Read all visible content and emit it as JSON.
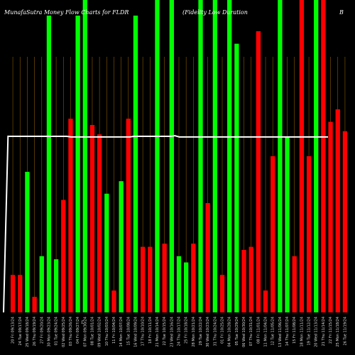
{
  "header": {
    "left": "MunafaSutra Money Flow Charts for FLDR",
    "middle": "(Fidelity Low Duration",
    "right": "B"
  },
  "colors": {
    "background": "#000000",
    "up": "#00ff00",
    "down": "#ff0000",
    "line": "#ffffff",
    "gridline": "#8b5a00"
  },
  "chart_data": {
    "type": "bar",
    "title": "MunafaSutra Money Flow Charts for FLDR (Fidelity Low Duration B",
    "xlabel": "",
    "ylabel": "",
    "ylim": [
      0,
      100
    ],
    "grid": true,
    "marker": "£",
    "categories": [
      "20 Fri 09/13/24",
      "24 Tue 09/17/24",
      "25 Wed 09/18/24",
      "26 Thu 09/19/24",
      "27 Fri 09/20/24",
      "30 Mon 09/23/24",
      "01 Tue 09/24/24",
      "02 Wed 09/25/24",
      "03 Thu 09/26/24",
      "04 Fri 09/27/24",
      "07 Mon 09/30/24",
      "08 Tue 10/01/24",
      "09 Wed 10/02/24",
      "10 Thu 10/03/24",
      "11 Fri 10/04/24",
      "14 Mon 10/07/24",
      "15 Tue 10/08/24",
      "16 Wed 10/09/24",
      "17 Thu 10/10/24",
      "18 Fri 10/11/24",
      "21 Mon 10/14/24",
      "22 Tue 10/15/24",
      "23 Wed 10/16/24",
      "24 Thu 10/17/24",
      "25 Fri 10/18/24",
      "28 Mon 10/21/24",
      "29 Tue 10/22/24",
      "30 Wed 10/23/24",
      "31 Thu 10/24/24",
      "01 Fri 10/25/24",
      "04 Mon 10/28/24",
      "05 Tue 10/29/24",
      "06 Wed 10/30/24",
      "07 Thu 10/31/24",
      "08 Fri 11/01/24",
      "11 Mon 11/04/24",
      "12 Tue 11/05/24",
      "13 Wed 11/06/24",
      "14 Thu 11/07/24",
      "15 Fri 11/08/24",
      "18 Mon 11/11/24",
      "19 Tue 11/12/24",
      "20 Wed 11/13/24",
      "21 Thu 11/14/24",
      "22 Fri 11/15/24",
      "25 Mon 11/18/24",
      "26 Tue 11/19/24"
    ],
    "series": [
      {
        "values": [
          12,
          12,
          45,
          5,
          18,
          95,
          17,
          36,
          62,
          95,
          100,
          60,
          57,
          38,
          7,
          42,
          62,
          95,
          21,
          21,
          100,
          22,
          100,
          18,
          16,
          22,
          100,
          35,
          100,
          12,
          100,
          86,
          20,
          21,
          90,
          7,
          50,
          100,
          56,
          18,
          100,
          50,
          100,
          100,
          61,
          65,
          58
        ],
        "colors": [
          "down",
          "down",
          "up",
          "down",
          "up",
          "up",
          "up",
          "down",
          "down",
          "up",
          "up",
          "down",
          "down",
          "up",
          "down",
          "up",
          "down",
          "up",
          "down",
          "down",
          "up",
          "down",
          "up",
          "up",
          "up",
          "down",
          "up",
          "down",
          "up",
          "down",
          "up",
          "up",
          "down",
          "down",
          "down",
          "down",
          "down",
          "up",
          "up",
          "down",
          "down",
          "down",
          "up",
          "down",
          "down",
          "down",
          "down"
        ]
      }
    ],
    "line_values": [
      0,
      70,
      70,
      70,
      70,
      70,
      70,
      70,
      70,
      70,
      70,
      70,
      70,
      70,
      70,
      69.8,
      69.8,
      69.8,
      69.8,
      69.8,
      69.8,
      69.8,
      69.8,
      69.8,
      69.8,
      69.8,
      69.8,
      69.8,
      69.8,
      70,
      70,
      70,
      70,
      70,
      70,
      70,
      70,
      70,
      70.2,
      69.8,
      69.8,
      69.8,
      69.8,
      69.8,
      69.8,
      69.8,
      69.8,
      69.8,
      69.8,
      69.8,
      69.8,
      69.8,
      69.8,
      69.8,
      69.8,
      69.8,
      69.8,
      69.8,
      69.8,
      69.8,
      69.8,
      69.8,
      69.8,
      69.8,
      69.8,
      69.8,
      69.8,
      69.8,
      69.8,
      69.8,
      69.8,
      69.8,
      69.8
    ]
  }
}
